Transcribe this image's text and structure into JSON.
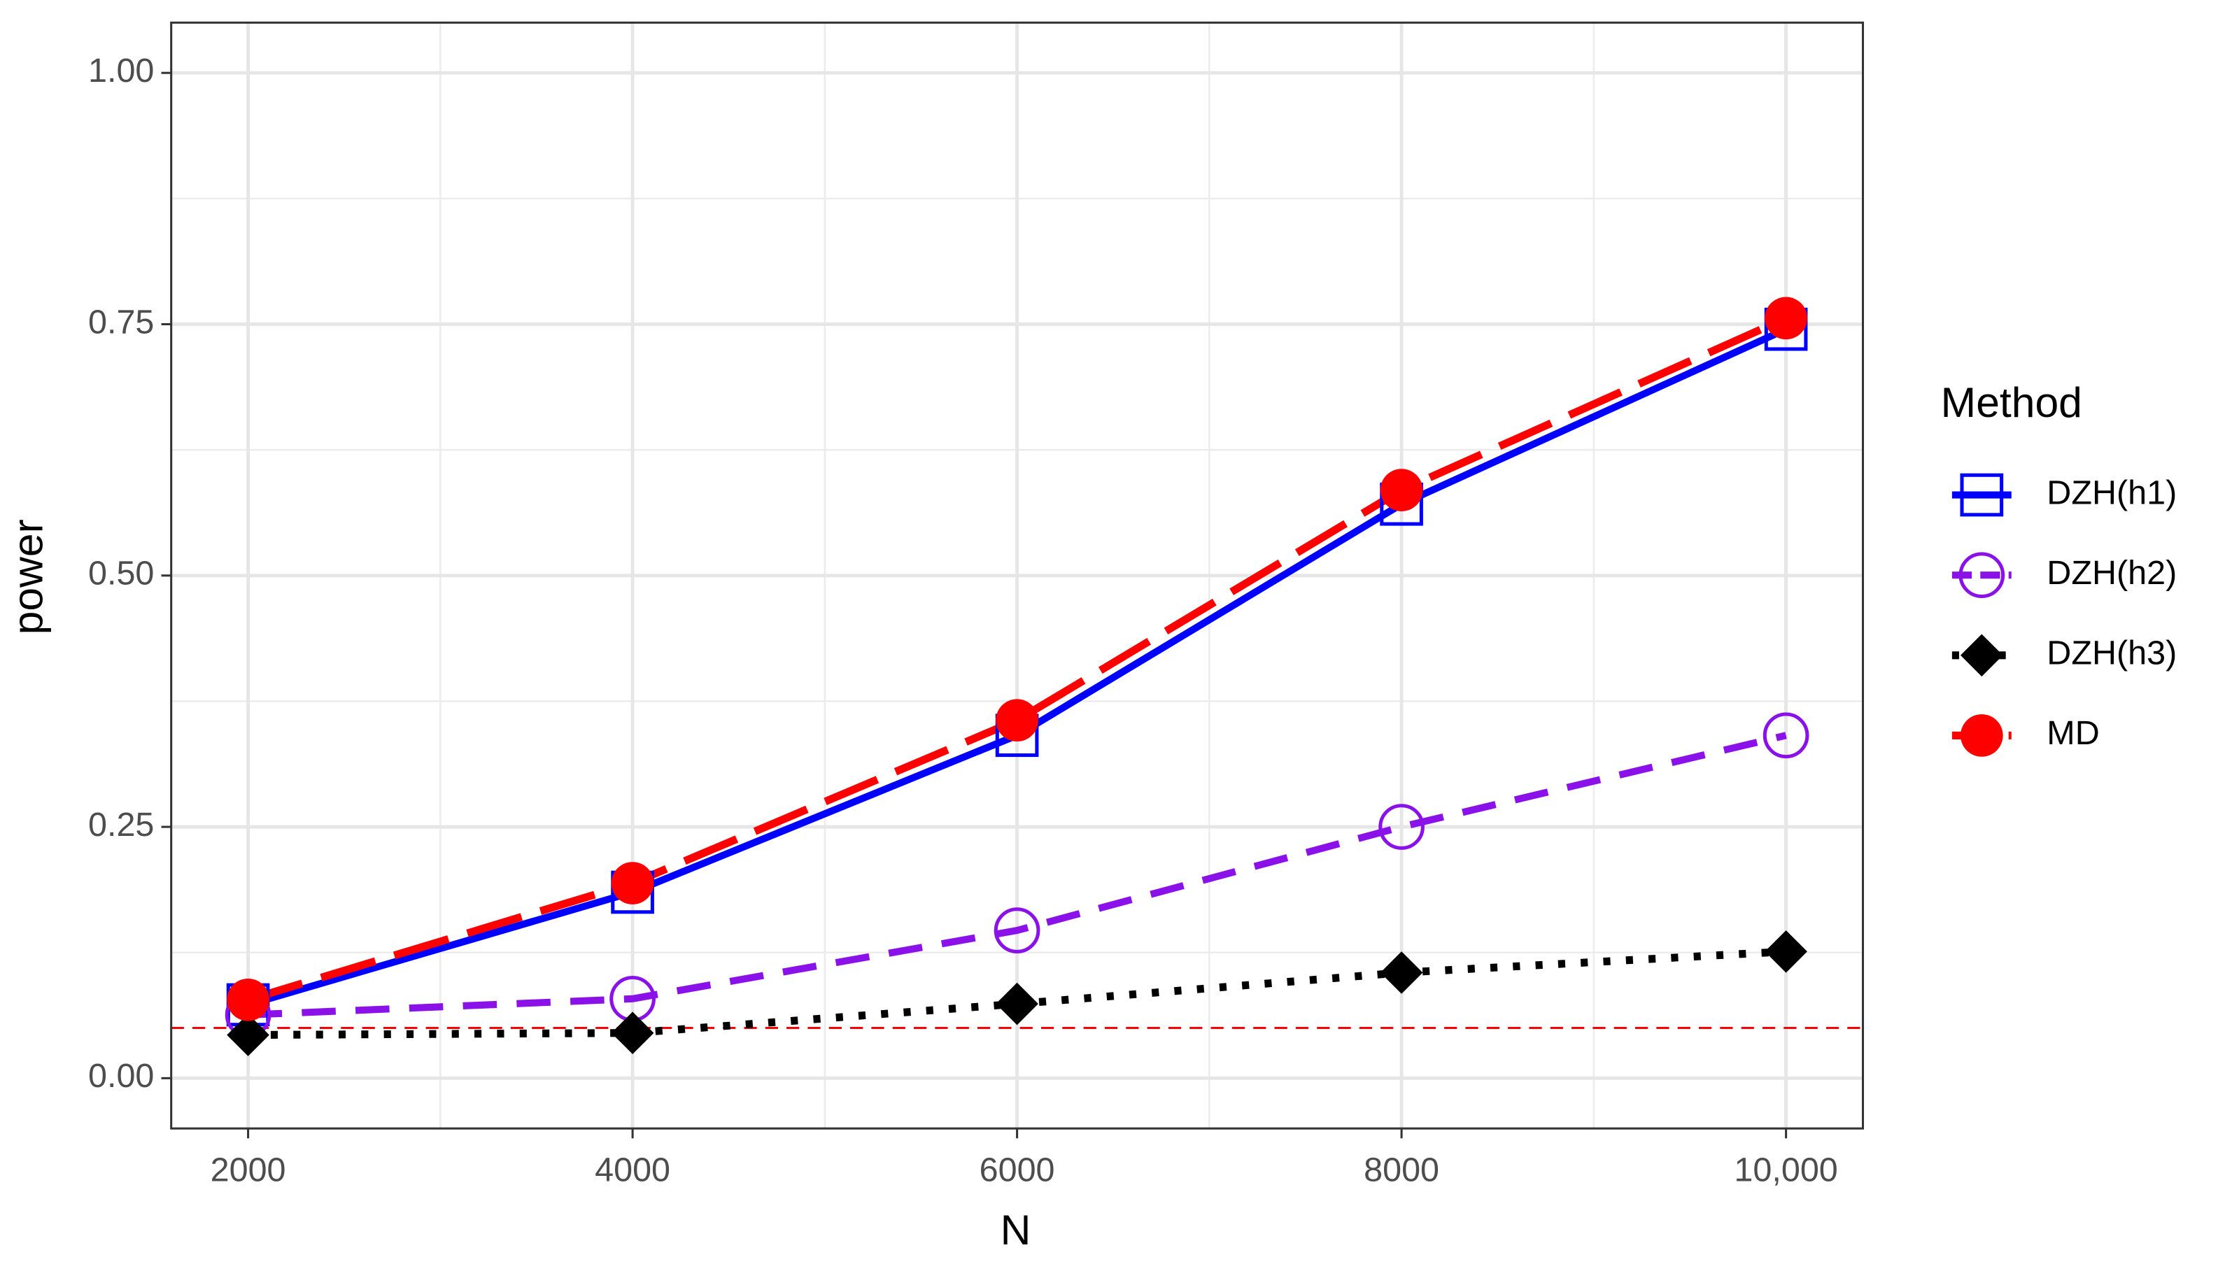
{
  "chart_data": {
    "type": "line",
    "x_label": "N",
    "y_label": "power",
    "legend_title": "Method",
    "legend_position": "right",
    "grid": true,
    "x": [
      2000,
      4000,
      6000,
      8000,
      10000
    ],
    "xlim": [
      1600,
      10400
    ],
    "xticks": [
      2000,
      4000,
      6000,
      8000,
      {
        "value": 10000,
        "label": "10,000"
      }
    ],
    "ylim": [
      -0.05,
      1.05
    ],
    "yticks": [
      {
        "value": 0,
        "label": "0.00"
      },
      {
        "value": 0.25,
        "label": "0.25"
      },
      {
        "value": 0.5,
        "label": "0.50"
      },
      {
        "value": 0.75,
        "label": "0.75"
      },
      {
        "value": 1,
        "label": "1.00"
      }
    ],
    "hline": {
      "value": 0.05,
      "color": "#ff0000"
    },
    "series": [
      {
        "name": "DZH(h1)",
        "color": "#0000ff",
        "dash": "solid",
        "marker": "square-open",
        "values": [
          0.073,
          0.185,
          0.341,
          0.571,
          0.745
        ]
      },
      {
        "name": "DZH(h2)",
        "color": "#8a12e8",
        "dash": "dashed",
        "marker": "circle-open",
        "values": [
          0.063,
          0.079,
          0.147,
          0.25,
          0.341
        ]
      },
      {
        "name": "DZH(h3)",
        "color": "#000000",
        "dash": "dotted",
        "marker": "diamond",
        "values": [
          0.043,
          0.045,
          0.074,
          0.105,
          0.126
        ]
      },
      {
        "name": "MD",
        "color": "#ff0000",
        "dash": "longdash",
        "marker": "circle",
        "values": [
          0.078,
          0.194,
          0.356,
          0.585,
          0.756
        ]
      }
    ]
  }
}
